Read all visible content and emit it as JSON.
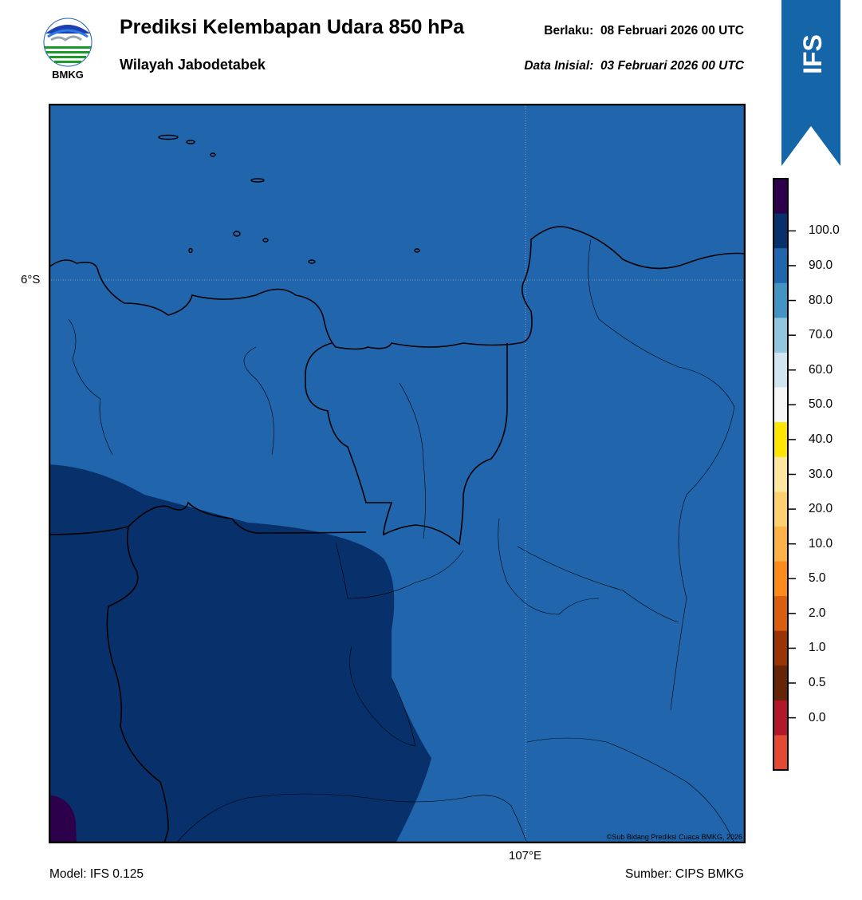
{
  "header": {
    "title": "Prediksi Kelembapan Udara 850 hPa",
    "region": "Wilayah Jabodetabek",
    "valid_label": "Berlaku:",
    "valid_time": "08 Februari 2026 00 UTC",
    "init_label": "Data Inisial:",
    "init_time": "03 Februari 2026 00 UTC"
  },
  "logo": {
    "text": "BMKG"
  },
  "ribbon": {
    "text": "IFS",
    "color": "#1565a9"
  },
  "map": {
    "lat_label": "6°S",
    "lon_label": "107°E",
    "credit": "©Sub Bidang Prediksi Cuaca BMKG, 2026",
    "background_class_color": "#2166ac",
    "dark_class_color": "#08306b",
    "darkest_class_color": "#2d004b"
  },
  "footer": {
    "model": "Model: IFS 0.125",
    "source": "Sumber: CIPS BMKG"
  },
  "colorbar": {
    "colors": [
      "#2d004b",
      "#08306b",
      "#2166ac",
      "#4393c3",
      "#92c5de",
      "#d1e5f0",
      "#f7f7f7",
      "#ffe600",
      "#ffe7a0",
      "#ffd070",
      "#ffb347",
      "#ff8c1a",
      "#d95f0e",
      "#993404",
      "#662506",
      "#b2182b",
      "#e34a33"
    ],
    "labels": [
      "100.0",
      "90.0",
      "80.0",
      "70.0",
      "60.0",
      "50.0",
      "40.0",
      "30.0",
      "20.0",
      "10.0",
      "5.0",
      "2.0",
      "1.0",
      "0.5",
      "0.0"
    ]
  }
}
